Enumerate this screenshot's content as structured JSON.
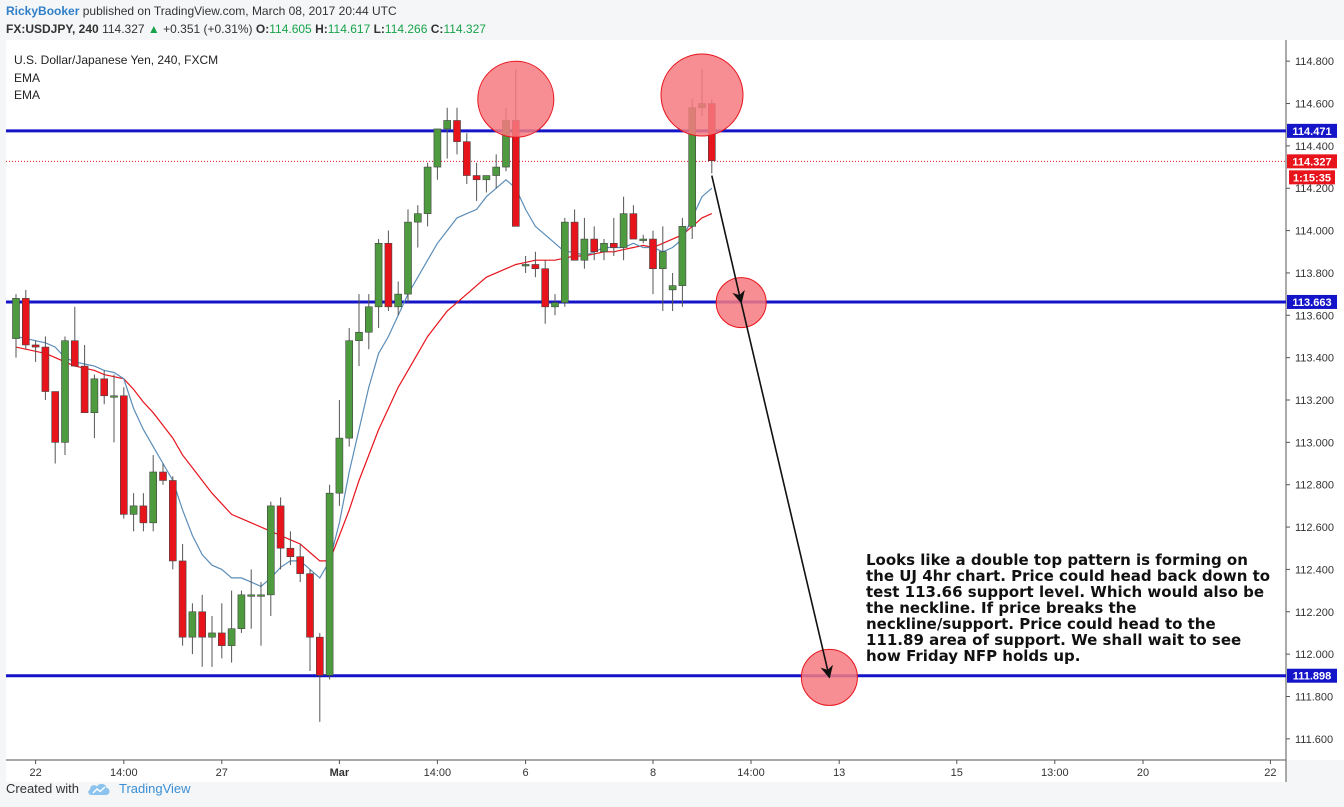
{
  "header": {
    "author": "RickyBooker",
    "published": "published on TradingView.com, March 08, 2017 20:44 UTC",
    "symbol": "FX:USDJPY, 240",
    "last": "114.327",
    "change": "+0.351 (+0.31%)",
    "o_label": "O:",
    "o": "114.605",
    "h_label": "H:",
    "h": "114.617",
    "l_label": "L:",
    "l": "114.266",
    "c_label": "C:",
    "c": "114.327"
  },
  "legend": {
    "title": "U.S. Dollar/Japanese Yen, 240, FXCM",
    "ema1": "EMA",
    "ema2": "EMA"
  },
  "annotation": "Looks like a double top pattern is forming on the UJ 4hr chart. Price could head back down to test 113.66 support level. Which would also be the neckline. If price breaks the neckline/support. Price could head to the 111.89 area of support. We shall wait to see how Friday NFP holds up.",
  "footer": {
    "created_with": "Created with",
    "brand": "TradingView"
  },
  "colors": {
    "up": "#4e9a3f",
    "down": "#e8141c",
    "level": "#1414c8",
    "ema_fast": "#5b8db8",
    "ema_slow": "#e8141c",
    "marker": "#f47a80"
  },
  "chart_data": {
    "type": "candlestick",
    "ylim": [
      111.5,
      114.9
    ],
    "y_ticks": [
      "114.800",
      "114.600",
      "114.400",
      "114.200",
      "114.000",
      "113.800",
      "113.600",
      "113.400",
      "113.200",
      "113.000",
      "112.800",
      "112.600",
      "112.400",
      "112.200",
      "112.000",
      "111.800",
      "111.600"
    ],
    "x_ticks": [
      {
        "label": "22",
        "i": 2
      },
      {
        "label": "14:00",
        "i": 11
      },
      {
        "label": "27",
        "i": 21
      },
      {
        "label": "Mar",
        "i": 33
      },
      {
        "label": "14:00",
        "i": 43
      },
      {
        "label": "6",
        "i": 52
      },
      {
        "label": "8",
        "i": 65
      },
      {
        "label": "14:00",
        "i": 75
      },
      {
        "label": "13",
        "i": 84
      },
      {
        "label": "15",
        "i": 96
      },
      {
        "label": "13:00",
        "i": 106
      },
      {
        "label": "20",
        "i": 115
      },
      {
        "label": "22",
        "i": 128
      }
    ],
    "levels": [
      {
        "value": 114.471,
        "label": "114.471"
      },
      {
        "value": 113.663,
        "label": "113.663"
      },
      {
        "value": 111.898,
        "label": "111.898"
      }
    ],
    "current_price": {
      "value": 114.327,
      "label": "114.327",
      "countdown": "1:15:35"
    },
    "ohlc": [
      [
        113.49,
        113.7,
        113.4,
        113.68
      ],
      [
        113.68,
        113.72,
        113.44,
        113.46
      ],
      [
        113.46,
        113.48,
        113.38,
        113.45
      ],
      [
        113.45,
        113.5,
        113.2,
        113.24
      ],
      [
        113.24,
        113.24,
        112.9,
        113.0
      ],
      [
        113.0,
        113.5,
        112.94,
        113.48
      ],
      [
        113.48,
        113.64,
        113.36,
        113.36
      ],
      [
        113.36,
        113.46,
        113.14,
        113.14
      ],
      [
        113.14,
        113.32,
        113.02,
        113.3
      ],
      [
        113.3,
        113.34,
        113.18,
        113.22
      ],
      [
        113.22,
        113.32,
        113.0,
        113.22
      ],
      [
        113.22,
        113.26,
        112.64,
        112.66
      ],
      [
        112.66,
        112.76,
        112.58,
        112.7
      ],
      [
        112.7,
        112.76,
        112.58,
        112.62
      ],
      [
        112.62,
        112.94,
        112.58,
        112.86
      ],
      [
        112.86,
        112.9,
        112.8,
        112.82
      ],
      [
        112.82,
        112.84,
        112.4,
        112.44
      ],
      [
        112.44,
        112.52,
        112.04,
        112.08
      ],
      [
        112.08,
        112.24,
        112.0,
        112.2
      ],
      [
        112.2,
        112.28,
        111.94,
        112.08
      ],
      [
        112.08,
        112.18,
        111.94,
        112.1
      ],
      [
        112.1,
        112.24,
        111.98,
        112.04
      ],
      [
        112.04,
        112.3,
        111.96,
        112.12
      ],
      [
        112.12,
        112.3,
        112.1,
        112.28
      ],
      [
        112.28,
        112.4,
        112.12,
        112.28
      ],
      [
        112.28,
        112.34,
        112.04,
        112.28
      ],
      [
        112.28,
        112.72,
        112.18,
        112.7
      ],
      [
        112.7,
        112.74,
        112.4,
        112.5
      ],
      [
        112.5,
        112.58,
        112.42,
        112.46
      ],
      [
        112.46,
        112.52,
        112.34,
        112.38
      ],
      [
        112.38,
        112.4,
        111.92,
        112.08
      ],
      [
        112.08,
        112.1,
        111.68,
        111.9
      ],
      [
        111.9,
        112.8,
        111.88,
        112.76
      ],
      [
        112.76,
        113.2,
        112.7,
        113.02
      ],
      [
        113.02,
        113.54,
        112.98,
        113.48
      ],
      [
        113.48,
        113.7,
        113.36,
        113.52
      ],
      [
        113.52,
        113.7,
        113.44,
        113.64
      ],
      [
        113.64,
        113.96,
        113.54,
        113.94
      ],
      [
        113.94,
        114.0,
        113.62,
        113.64
      ],
      [
        113.64,
        113.76,
        113.6,
        113.7
      ],
      [
        113.7,
        114.1,
        113.66,
        114.04
      ],
      [
        114.04,
        114.12,
        113.92,
        114.08
      ],
      [
        114.08,
        114.32,
        114.02,
        114.3
      ],
      [
        114.3,
        114.46,
        114.24,
        114.48
      ],
      [
        114.48,
        114.58,
        114.34,
        114.52
      ],
      [
        114.52,
        114.58,
        114.36,
        114.42
      ],
      [
        114.42,
        114.46,
        114.22,
        114.26
      ],
      [
        114.26,
        114.32,
        114.14,
        114.24
      ],
      [
        114.24,
        114.26,
        114.18,
        114.26
      ],
      [
        114.26,
        114.36,
        114.2,
        114.3
      ],
      [
        114.3,
        114.58,
        114.28,
        114.52
      ],
      [
        114.52,
        114.76,
        114.02,
        114.02
      ],
      [
        113.84,
        113.88,
        113.8,
        113.84
      ],
      [
        113.84,
        113.9,
        113.78,
        113.82
      ],
      [
        113.82,
        113.86,
        113.56,
        113.64
      ],
      [
        113.64,
        113.7,
        113.6,
        113.66
      ],
      [
        113.66,
        114.06,
        113.64,
        114.04
      ],
      [
        114.04,
        114.1,
        113.86,
        113.86
      ],
      [
        113.86,
        114.06,
        113.82,
        113.96
      ],
      [
        113.96,
        114.02,
        113.86,
        113.9
      ],
      [
        113.9,
        113.96,
        113.86,
        113.94
      ],
      [
        113.94,
        114.06,
        113.88,
        113.92
      ],
      [
        113.92,
        114.16,
        113.86,
        114.08
      ],
      [
        114.08,
        114.12,
        113.96,
        113.96
      ],
      [
        113.96,
        113.98,
        113.94,
        113.96
      ],
      [
        113.96,
        114.0,
        113.7,
        113.82
      ],
      [
        113.82,
        114.02,
        113.62,
        113.9
      ],
      [
        113.72,
        113.8,
        113.62,
        113.74
      ],
      [
        113.74,
        114.06,
        113.64,
        114.02
      ],
      [
        114.02,
        114.62,
        113.96,
        114.58
      ],
      [
        114.58,
        114.76,
        114.54,
        114.6
      ],
      [
        114.6,
        114.62,
        114.27,
        114.33
      ]
    ],
    "ema_fast": [
      113.5,
      113.49,
      113.48,
      113.47,
      113.45,
      113.4,
      113.38,
      113.37,
      113.36,
      113.34,
      113.33,
      113.3,
      113.16,
      113.06,
      112.98,
      112.9,
      112.82,
      112.68,
      112.56,
      112.47,
      112.42,
      112.4,
      112.36,
      112.36,
      112.34,
      112.32,
      112.36,
      112.41,
      112.44,
      112.44,
      112.4,
      112.36,
      112.44,
      112.62,
      112.86,
      113.06,
      113.26,
      113.42,
      113.5,
      113.6,
      113.7,
      113.78,
      113.86,
      113.94,
      114.0,
      114.06,
      114.08,
      114.1,
      114.16,
      114.2,
      114.24,
      114.2,
      114.1,
      114.02,
      113.98,
      113.94,
      113.9,
      113.9,
      113.88,
      113.9,
      113.92,
      113.92,
      113.92,
      113.94,
      113.92,
      113.92,
      113.9,
      113.92,
      113.96,
      114.06,
      114.16,
      114.2
    ],
    "ema_slow": [
      113.45,
      113.44,
      113.43,
      113.42,
      113.4,
      113.38,
      113.36,
      113.35,
      113.34,
      113.32,
      113.31,
      113.3,
      113.25,
      113.19,
      113.14,
      113.08,
      113.02,
      112.94,
      112.88,
      112.82,
      112.76,
      112.71,
      112.66,
      112.64,
      112.62,
      112.6,
      112.58,
      112.56,
      112.54,
      112.52,
      112.48,
      112.44,
      112.44,
      112.56,
      112.68,
      112.82,
      112.94,
      113.06,
      113.16,
      113.26,
      113.34,
      113.42,
      113.5,
      113.56,
      113.62,
      113.66,
      113.7,
      113.74,
      113.78,
      113.8,
      113.82,
      113.84,
      113.85,
      113.86,
      113.86,
      113.86,
      113.87,
      113.88,
      113.88,
      113.89,
      113.9,
      113.9,
      113.91,
      113.92,
      113.93,
      113.92,
      113.94,
      113.96,
      113.98,
      114.02,
      114.06,
      114.08
    ],
    "markers": [
      {
        "i": 51,
        "value": 114.62
      },
      {
        "i": 70,
        "value": 114.64
      },
      {
        "i": 74,
        "value": 113.66
      },
      {
        "i": 83,
        "value": 111.89
      }
    ],
    "arrows": [
      {
        "from": {
          "i": 71,
          "value": 114.26
        },
        "to": {
          "i": 74,
          "value": 113.66
        }
      },
      {
        "from": {
          "i": 74,
          "value": 113.66
        },
        "to": {
          "i": 83,
          "value": 111.89
        }
      }
    ]
  }
}
